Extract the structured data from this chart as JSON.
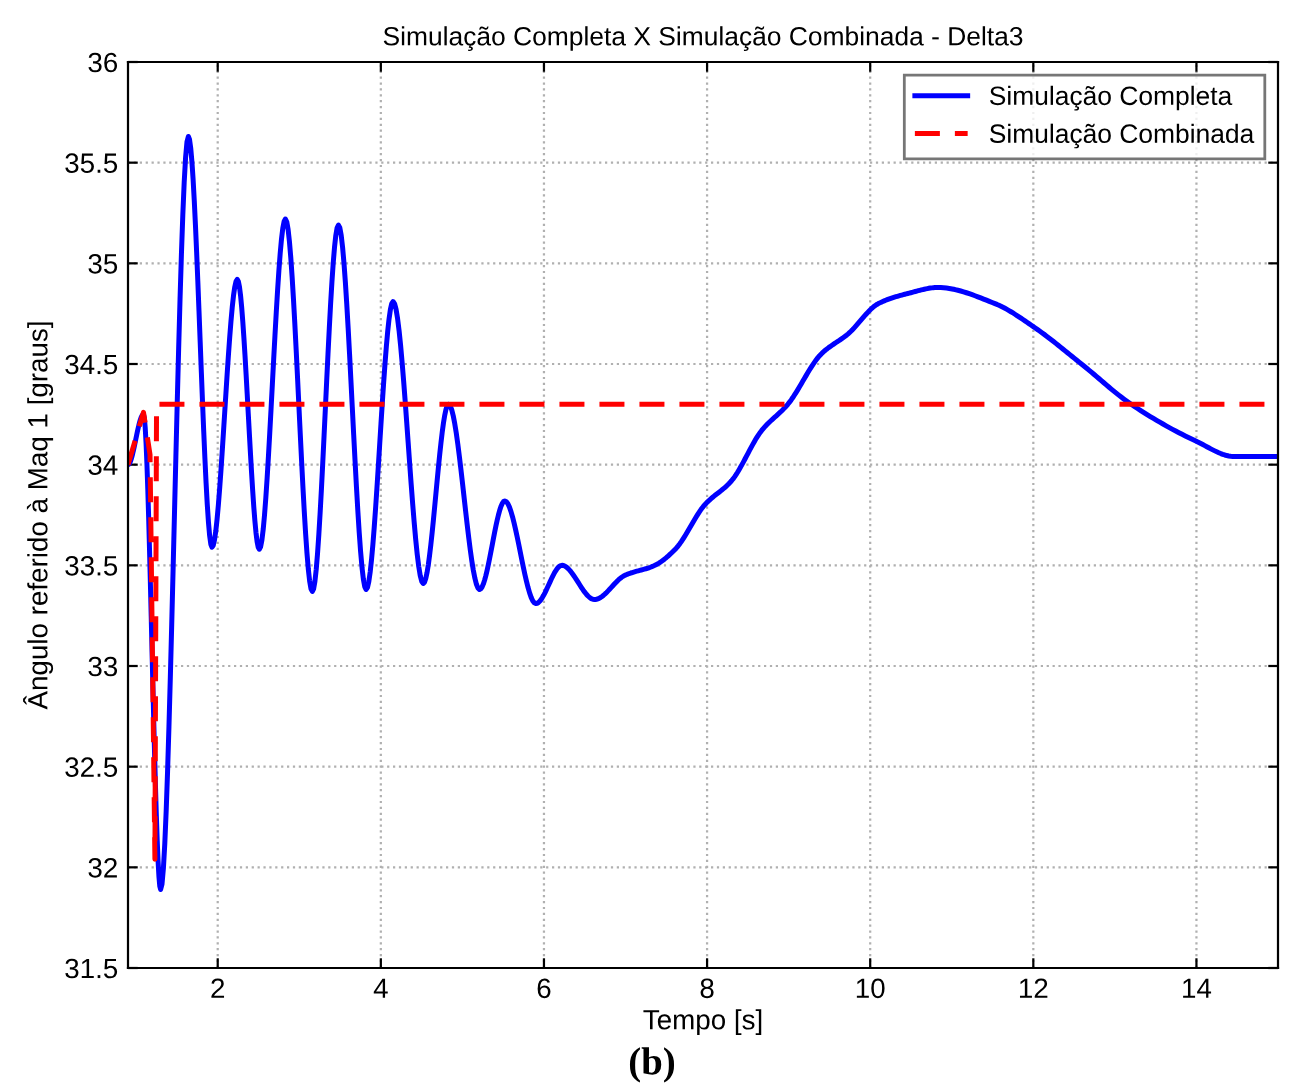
{
  "chart_data": {
    "type": "line",
    "title": "Simulação Completa X Simulação Combinada - Delta3",
    "xlabel": "Tempo [s]",
    "ylabel": "Ângulo referido à Maq 1 [graus]",
    "annotations": [
      "(b)"
    ],
    "xlim": [
      0.9,
      15
    ],
    "ylim": [
      31.5,
      36
    ],
    "xticks": [
      2,
      4,
      6,
      8,
      10,
      12,
      14
    ],
    "yticks": [
      31.5,
      32,
      32.5,
      33,
      33.5,
      34,
      34.5,
      35,
      35.5,
      36
    ],
    "grid": true,
    "legend": "top right",
    "series": [
      {
        "name": "Simulação Completa",
        "color": "#0000ff",
        "line_style": "solid",
        "x": [
          0.9,
          1.09,
          1.3,
          1.64,
          1.93,
          2.24,
          2.51,
          2.83,
          3.16,
          3.48,
          3.82,
          4.15,
          4.52,
          4.83,
          5.21,
          5.52,
          5.9,
          6.22,
          6.62,
          6.99,
          7.36,
          7.61,
          7.97,
          8.3,
          8.67,
          8.99,
          9.4,
          9.73,
          10.1,
          10.46,
          10.83,
          11.53,
          12.02,
          12.59,
          13.2,
          13.98,
          14.47,
          14.98
        ],
        "values": [
          34.0,
          34.25,
          31.89,
          35.63,
          33.59,
          34.92,
          33.58,
          35.22,
          33.37,
          35.19,
          33.38,
          34.81,
          33.41,
          34.3,
          33.38,
          33.82,
          33.31,
          33.5,
          33.33,
          33.45,
          33.5,
          33.58,
          33.8,
          33.92,
          34.17,
          34.3,
          34.55,
          34.65,
          34.8,
          34.85,
          34.88,
          34.8,
          34.68,
          34.5,
          34.3,
          34.12,
          34.04,
          34.04
        ]
      },
      {
        "name": "Simulação Combinada",
        "color": "#ff0000",
        "line_style": "dashed",
        "x": [
          0.9,
          1.09,
          1.17,
          1.23,
          1.25,
          15
        ],
        "values": [
          34.0,
          34.26,
          34.05,
          32.04,
          34.3,
          34.3
        ]
      }
    ]
  }
}
